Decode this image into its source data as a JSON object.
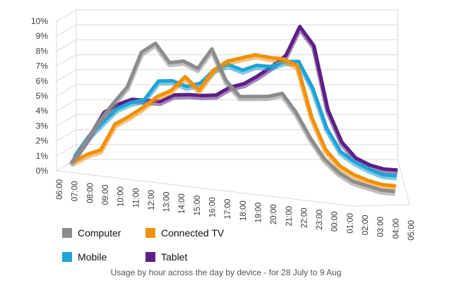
{
  "chart_data": {
    "type": "line",
    "title": "",
    "caption": "Usage by hour across the day by device - for 28 July to 9 Aug",
    "xlabel": "",
    "ylabel": "",
    "ylim": [
      0,
      10
    ],
    "y_ticks": [
      "0%",
      "1%",
      "2%",
      "3%",
      "4%",
      "5%",
      "6%",
      "7%",
      "8%",
      "9%",
      "10%"
    ],
    "grid": true,
    "legend_position": "bottom",
    "categories": [
      "06:00",
      "07:00",
      "08:00",
      "09:00",
      "10:00",
      "11:00",
      "12:00",
      "13:00",
      "14:00",
      "15:00",
      "16:00",
      "17:00",
      "18:00",
      "19:00",
      "20:00",
      "21:00",
      "22:00",
      "23:00",
      "00:00",
      "01:00",
      "02:00",
      "03:00",
      "04:00",
      "05:00"
    ],
    "series": [
      {
        "name": "Computer",
        "color": "#8c8c8c",
        "values": [
          0.3,
          1.8,
          3.3,
          4.6,
          5.8,
          8.2,
          8.9,
          7.7,
          7.9,
          7.5,
          8.9,
          6.9,
          5.9,
          6.0,
          6.1,
          6.4,
          5.2,
          3.6,
          2.3,
          1.5,
          1.0,
          0.8,
          0.6,
          0.6
        ]
      },
      {
        "name": "Connected TV",
        "color": "#f0900c",
        "values": [
          0.2,
          0.8,
          1.2,
          3.0,
          3.6,
          4.3,
          5.1,
          5.6,
          6.6,
          5.8,
          7.2,
          7.9,
          8.2,
          8.5,
          8.4,
          8.4,
          8.0,
          4.7,
          2.6,
          1.6,
          1.1,
          0.8,
          0.6,
          0.6
        ]
      },
      {
        "name": "Mobile",
        "color": "#1ea3d6",
        "values": [
          0.4,
          1.8,
          2.8,
          3.8,
          4.3,
          4.6,
          5.9,
          6.0,
          5.7,
          6.0,
          7.0,
          7.4,
          7.1,
          7.5,
          7.5,
          7.9,
          8.0,
          6.3,
          3.7,
          2.2,
          1.6,
          1.2,
          0.9,
          0.9
        ]
      },
      {
        "name": "Tablet",
        "color": "#5c1f87",
        "values": [
          0.3,
          1.7,
          3.3,
          3.9,
          4.3,
          4.3,
          4.3,
          4.8,
          4.9,
          4.9,
          5.0,
          5.6,
          5.9,
          6.5,
          7.2,
          8.0,
          10.0,
          8.8,
          4.6,
          2.5,
          1.5,
          1.1,
          0.9,
          0.9
        ]
      }
    ]
  }
}
